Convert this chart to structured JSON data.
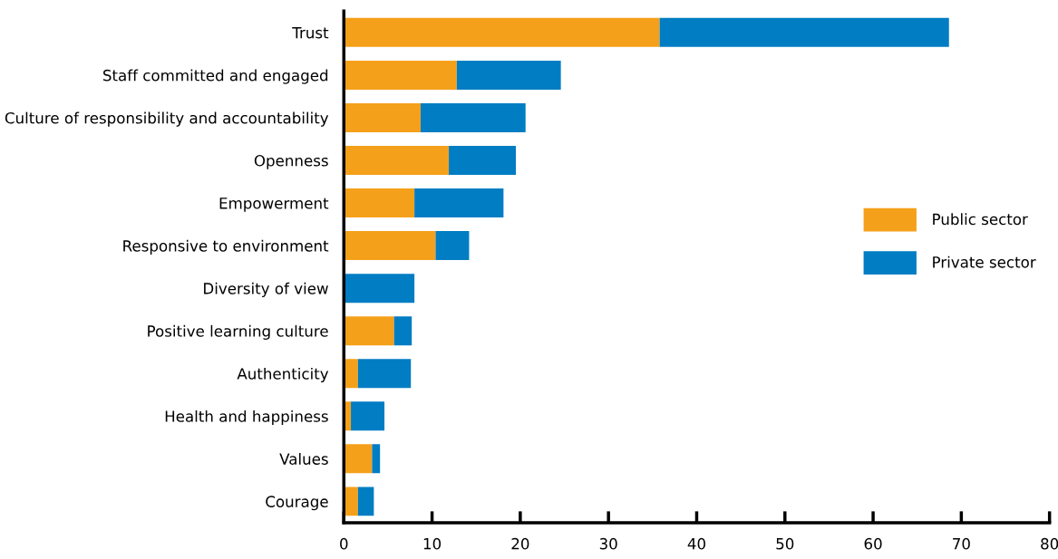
{
  "chart_data": {
    "type": "bar",
    "orientation": "horizontal",
    "stacked": true,
    "categories": [
      "Trust",
      "Staff committed and engaged",
      "Culture of responsibility and accountability",
      "Openness",
      "Empowerment",
      "Responsive to environment",
      "Diversity of view",
      "Positive learning culture",
      "Authenticity",
      "Health and happiness",
      "Values",
      "Courage"
    ],
    "series": [
      {
        "name": "Public sector",
        "color": "#f5a01a",
        "values": [
          35.8,
          12.8,
          8.7,
          11.9,
          8.0,
          10.4,
          0,
          5.7,
          1.6,
          0.8,
          3.2,
          1.6
        ]
      },
      {
        "name": "Private sector",
        "color": "#007dc3",
        "values": [
          32.8,
          11.8,
          11.9,
          7.6,
          10.1,
          3.8,
          8.0,
          2.0,
          6.0,
          3.8,
          0.9,
          1.8
        ]
      }
    ],
    "xlim": [
      0,
      80
    ],
    "xticks": [
      0,
      10,
      20,
      30,
      40,
      50,
      60,
      70,
      80
    ],
    "grid": false,
    "legend": "right"
  }
}
